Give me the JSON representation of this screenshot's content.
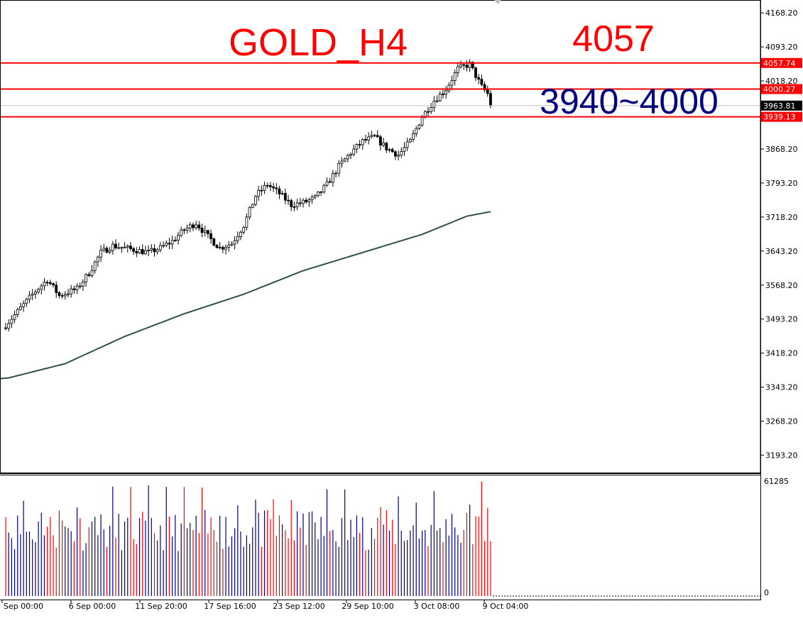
{
  "chart_data": [
    {
      "type": "candlestick",
      "symbol_label": "GOLD_H4",
      "annotations": [
        {
          "text": "GOLD_H4",
          "color": "#ff0000"
        },
        {
          "text": "4057",
          "color": "#ff0000"
        },
        {
          "text": "3940~4000",
          "color": "#000080"
        }
      ],
      "ylim": [
        3155,
        4195
      ],
      "y_ticks": [
        "4168.20",
        "4093.20",
        "4018.20",
        "3868.20",
        "3793.20",
        "3718.20",
        "3643.20",
        "3568.20",
        "3493.20",
        "3418.20",
        "3343.20",
        "3268.20",
        "3193.20"
      ],
      "x_labels": [
        "Sep 00:00",
        "6 Sep 00:00",
        "11 Sep 20:00",
        "17 Sep 16:00",
        "23 Sep 12:00",
        "29 Sep 10:00",
        "3 Oct 08:00",
        "9 Oct 04:00"
      ],
      "horizontal_levels": [
        {
          "value": 4057.74,
          "label": "4057.74",
          "color": "#ff0000"
        },
        {
          "value": 4000.27,
          "label": "4000.27",
          "color": "#ff0000"
        },
        {
          "value": 3939.13,
          "label": "3939.13",
          "color": "#ff0000"
        }
      ],
      "current_price": {
        "value": 3963.81,
        "label": "3963.81"
      },
      "close_path": [
        [
          0,
          3480
        ],
        [
          6,
          3525
        ],
        [
          10,
          3555
        ],
        [
          14,
          3580
        ],
        [
          18,
          3545
        ],
        [
          24,
          3560
        ],
        [
          28,
          3595
        ],
        [
          32,
          3640
        ],
        [
          36,
          3655
        ],
        [
          40,
          3650
        ],
        [
          44,
          3645
        ],
        [
          48,
          3640
        ],
        [
          52,
          3650
        ],
        [
          56,
          3665
        ],
        [
          60,
          3690
        ],
        [
          64,
          3705
        ],
        [
          68,
          3675
        ],
        [
          72,
          3650
        ],
        [
          76,
          3660
        ],
        [
          80,
          3700
        ],
        [
          84,
          3765
        ],
        [
          88,
          3790
        ],
        [
          92,
          3770
        ],
        [
          96,
          3745
        ],
        [
          100,
          3750
        ],
        [
          104,
          3760
        ],
        [
          108,
          3790
        ],
        [
          112,
          3830
        ],
        [
          116,
          3860
        ],
        [
          120,
          3885
        ],
        [
          124,
          3895
        ],
        [
          128,
          3870
        ],
        [
          132,
          3855
        ],
        [
          136,
          3885
        ],
        [
          140,
          3940
        ],
        [
          144,
          3975
        ],
        [
          148,
          4000
        ],
        [
          152,
          4045
        ],
        [
          156,
          4055
        ],
        [
          160,
          4005
        ],
        [
          162,
          3990
        ],
        [
          163,
          3963.81
        ]
      ],
      "moving_average": {
        "color": "#2f4f4f",
        "points": [
          [
            0,
            3362
          ],
          [
            20,
            3395
          ],
          [
            40,
            3455
          ],
          [
            60,
            3505
          ],
          [
            80,
            3548
          ],
          [
            100,
            3600
          ],
          [
            120,
            3640
          ],
          [
            140,
            3680
          ],
          [
            155,
            3720
          ],
          [
            163,
            3730
          ]
        ]
      },
      "volume": {
        "top_label": "61285",
        "zero_label": "0",
        "ylim": [
          0,
          61285
        ],
        "up_color": "#000080",
        "down_color": "#ff0000"
      }
    }
  ]
}
